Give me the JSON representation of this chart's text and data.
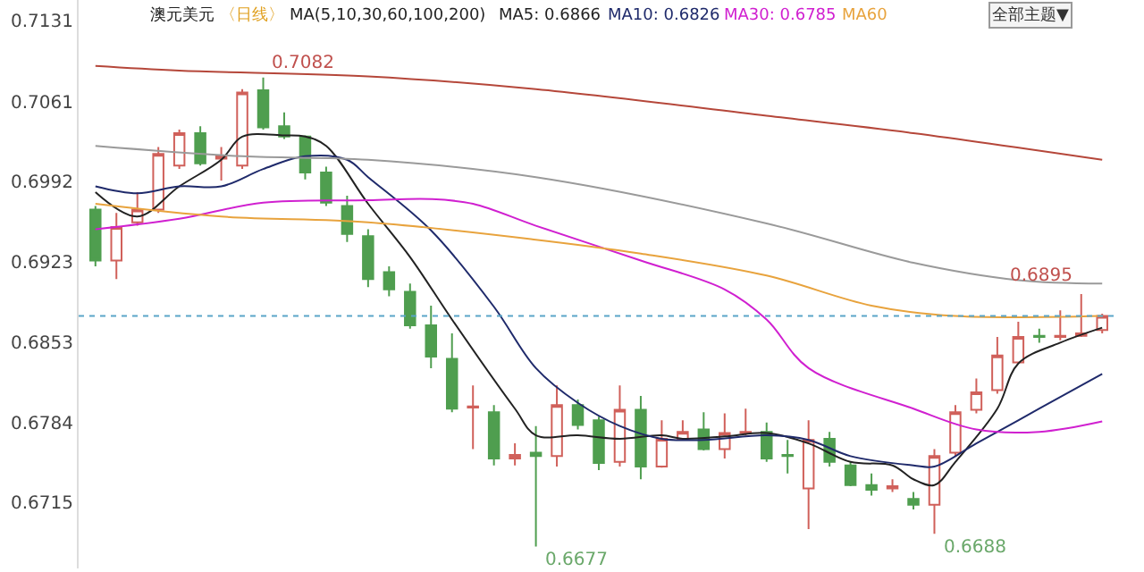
{
  "chart_data": {
    "type": "candlestick",
    "title": "澳元美元",
    "subtitle": "〈日线〉",
    "annotations": [
      "MA(5,10,30,60,100,200)",
      "全部主题▼",
      "0.7082",
      "0.6677",
      "0.6688",
      "0.6895"
    ],
    "categories": [
      null,
      null,
      null,
      null,
      null,
      null,
      null,
      null,
      null,
      null,
      null,
      null,
      null,
      null,
      null,
      null,
      null,
      null,
      null,
      null,
      null,
      null,
      null,
      null,
      null,
      null,
      null,
      null,
      null,
      null,
      null,
      null,
      null,
      null,
      null,
      null,
      null,
      null,
      null,
      null,
      null,
      null,
      null,
      null,
      null,
      null,
      null,
      null,
      null
    ],
    "ohlc": [
      [
        0.6968,
        0.6971,
        0.6919,
        0.6924
      ],
      [
        0.6924,
        0.6965,
        0.6908,
        0.6953
      ],
      [
        0.6957,
        0.6983,
        0.6954,
        0.6968
      ],
      [
        0.6968,
        0.7022,
        0.6965,
        0.7016
      ],
      [
        0.7006,
        0.7037,
        0.7003,
        0.7034
      ],
      [
        0.7034,
        0.704,
        0.7006,
        0.7008
      ],
      [
        0.7012,
        0.7022,
        0.6993,
        0.7014
      ],
      [
        0.7006,
        0.7072,
        0.7003,
        0.7069
      ],
      [
        0.7071,
        0.7082,
        0.7037,
        0.7039
      ],
      [
        0.704,
        0.7052,
        0.7029,
        0.7031
      ],
      [
        0.7031,
        0.7032,
        0.6994,
        0.7
      ],
      [
        0.7,
        0.7005,
        0.6971,
        0.6974
      ],
      [
        0.6971,
        0.698,
        0.694,
        0.6947
      ],
      [
        0.6945,
        0.6951,
        0.6901,
        0.6908
      ],
      [
        0.6914,
        0.6919,
        0.6893,
        0.6899
      ],
      [
        0.6897,
        0.6904,
        0.6865,
        0.6868
      ],
      [
        0.6868,
        0.6885,
        0.6831,
        0.6841
      ],
      [
        0.6839,
        0.6861,
        0.6793,
        0.6796
      ],
      [
        0.6797,
        0.6816,
        0.6761,
        0.6798
      ],
      [
        0.6793,
        0.6799,
        0.6747,
        0.6753
      ],
      [
        0.6753,
        0.6766,
        0.6747,
        0.6756
      ],
      [
        0.6758,
        0.6781,
        0.6677,
        0.6755
      ],
      [
        0.6755,
        0.6816,
        0.6746,
        0.6799
      ],
      [
        0.6799,
        0.6804,
        0.6778,
        0.6782
      ],
      [
        0.6786,
        0.6789,
        0.6743,
        0.6749
      ],
      [
        0.675,
        0.6816,
        0.6746,
        0.6795
      ],
      [
        0.6795,
        0.6807,
        0.6735,
        0.6746
      ],
      [
        0.6746,
        0.6786,
        0.6745,
        0.677
      ],
      [
        0.677,
        0.6786,
        0.6769,
        0.6776
      ],
      [
        0.6778,
        0.6793,
        0.676,
        0.6761
      ],
      [
        0.6761,
        0.6792,
        0.6753,
        0.6775
      ],
      [
        0.6775,
        0.6796,
        0.6773,
        0.6776
      ],
      [
        0.6776,
        0.6784,
        0.675,
        0.6753
      ],
      [
        0.6756,
        0.6769,
        0.674,
        0.6755
      ],
      [
        0.6727,
        0.6786,
        0.6692,
        0.6769
      ],
      [
        0.677,
        0.6776,
        0.6746,
        0.675
      ],
      [
        0.6747,
        0.675,
        0.6729,
        0.673
      ],
      [
        0.673,
        0.674,
        0.6721,
        0.6726
      ],
      [
        0.6727,
        0.6735,
        0.6724,
        0.6729
      ],
      [
        0.6718,
        0.6724,
        0.6709,
        0.6713
      ],
      [
        0.6713,
        0.6761,
        0.6688,
        0.6755
      ],
      [
        0.6758,
        0.6799,
        0.6755,
        0.6793
      ],
      [
        0.6795,
        0.6822,
        0.6792,
        0.681
      ],
      [
        0.6812,
        0.6858,
        0.6809,
        0.6842
      ],
      [
        0.6836,
        0.6871,
        0.6835,
        0.6858
      ],
      [
        0.6859,
        0.6865,
        0.6853,
        0.6858
      ],
      [
        0.6858,
        0.6881,
        0.6855,
        0.6859
      ],
      [
        0.6859,
        0.6895,
        0.6858,
        0.6861
      ],
      [
        0.6864,
        0.6878,
        0.6861,
        0.6876
      ]
    ],
    "colors": [
      "#4f9e4f",
      "#d0605a",
      "#d0605a",
      "#d0605a",
      "#d0605a",
      "#4f9e4f",
      "#d0605a",
      "#d0605a",
      "#4f9e4f",
      "#4f9e4f",
      "#4f9e4f",
      "#4f9e4f",
      "#4f9e4f",
      "#4f9e4f",
      "#4f9e4f",
      "#4f9e4f",
      "#4f9e4f",
      "#4f9e4f",
      "#d0605a",
      "#4f9e4f",
      "#d0605a",
      "#4f9e4f",
      "#d0605a",
      "#4f9e4f",
      "#4f9e4f",
      "#d0605a",
      "#4f9e4f",
      "#d0605a",
      "#d0605a",
      "#4f9e4f",
      "#d0605a",
      "#d0605a",
      "#4f9e4f",
      "#4f9e4f",
      "#d0605a",
      "#4f9e4f",
      "#4f9e4f",
      "#4f9e4f",
      "#d0605a",
      "#4f9e4f",
      "#d0605a",
      "#d0605a",
      "#d0605a",
      "#d0605a",
      "#d0605a",
      "#4f9e4f",
      "#d0605a",
      "#d0605a",
      "#d0605a"
    ],
    "series": [
      {
        "name": "MA5: 0.6866",
        "type": "line",
        "color": "#222222",
        "values": [
          0.6983,
          null,
          0.6962,
          null,
          0.6988,
          null,
          0.7011,
          0.7031,
          null,
          0.7032,
          0.7031,
          0.7023,
          null,
          0.6973,
          null,
          0.6927,
          null,
          0.6873,
          null,
          null,
          0.6796,
          0.6773,
          null,
          0.6773,
          null,
          0.677,
          null,
          0.6773,
          0.677,
          null,
          0.6772,
          null,
          0.6775,
          null,
          0.6766,
          null,
          0.675,
          null,
          0.6747,
          0.6735,
          0.673,
          0.675,
          null,
          0.6796,
          0.6835,
          null,
          0.6853,
          null,
          0.6866
        ]
      },
      {
        "name": "MA10: 0.6826",
        "type": "line",
        "color": "#1f2a6b",
        "values": [
          0.6988,
          null,
          0.6982,
          null,
          0.6988,
          null,
          0.6988,
          null,
          0.7003,
          null,
          0.7014,
          null,
          0.7011,
          0.6996,
          null,
          null,
          0.695,
          null,
          null,
          0.6884,
          null,
          0.6831,
          null,
          0.6801,
          null,
          0.6781,
          null,
          0.677,
          null,
          0.6769,
          null,
          null,
          0.6773,
          null,
          0.6769,
          null,
          0.6755,
          null,
          null,
          0.6747,
          0.6746,
          null,
          0.6766,
          null,
          null,
          0.6796,
          null,
          null,
          0.6826
        ]
      },
      {
        "name": "MA30: 0.6785",
        "type": "line",
        "color": "#d020d0",
        "values": [
          0.6951,
          null,
          null,
          null,
          0.696,
          null,
          null,
          null,
          0.6974,
          null,
          null,
          null,
          null,
          0.6976,
          null,
          null,
          0.6977,
          null,
          0.6973,
          null,
          null,
          0.6954,
          null,
          null,
          null,
          null,
          0.6924,
          null,
          null,
          null,
          0.6899,
          null,
          0.6873,
          null,
          0.6831,
          null,
          null,
          null,
          null,
          0.6796,
          null,
          null,
          0.6778,
          null,
          null,
          0.6776,
          null,
          null,
          0.6785
        ]
      },
      {
        "name": "MA60",
        "type": "line",
        "color": "#e8a33d",
        "values": [
          0.6973,
          null,
          null,
          null,
          null,
          null,
          0.6962,
          null,
          null,
          null,
          null,
          null,
          null,
          0.6957,
          null,
          null,
          null,
          null,
          null,
          null,
          null,
          0.6942,
          null,
          null,
          null,
          null,
          0.693,
          null,
          null,
          null,
          null,
          null,
          0.6911,
          null,
          null,
          null,
          null,
          0.6885,
          null,
          null,
          null,
          0.6876,
          null,
          null,
          null,
          null,
          null,
          null,
          0.6876
        ]
      },
      {
        "type": "line",
        "color": "#9a9a9a",
        "values": [
          0.7023,
          null,
          null,
          null,
          null,
          null,
          null,
          0.7014,
          null,
          null,
          null,
          null,
          null,
          0.7011,
          null,
          null,
          null,
          null,
          null,
          null,
          null,
          0.6996,
          null,
          null,
          null,
          null,
          null,
          null,
          null,
          null,
          null,
          null,
          0.6956,
          null,
          null,
          null,
          null,
          null,
          null,
          0.6922,
          null,
          null,
          null,
          null,
          0.6907,
          null,
          null,
          null,
          0.6904
        ]
      },
      {
        "type": "line",
        "color": "#b5473a",
        "values": [
          0.7092,
          null,
          null,
          null,
          0.7088,
          null,
          null,
          null,
          null,
          null,
          null,
          null,
          null,
          0.7083,
          null,
          null,
          null,
          null,
          null,
          null,
          null,
          0.7072,
          null,
          null,
          null,
          null,
          null,
          null,
          null,
          null,
          null,
          null,
          0.7049,
          null,
          null,
          null,
          null,
          null,
          null,
          0.7034,
          null,
          null,
          null,
          null,
          null,
          null,
          null,
          null,
          0.7011
        ]
      }
    ],
    "ref_lines": [
      {
        "axis": "y",
        "value": 0.6876,
        "color": "#5aa5c8",
        "line_style": "dotted"
      }
    ],
    "ylim": [
      0.6658,
      0.7149
    ],
    "yticks": [
      0.6715,
      0.6784,
      0.6853,
      0.6923,
      0.6992,
      0.7061,
      0.7131
    ],
    "tick_labels": "y",
    "legend": false
  }
}
